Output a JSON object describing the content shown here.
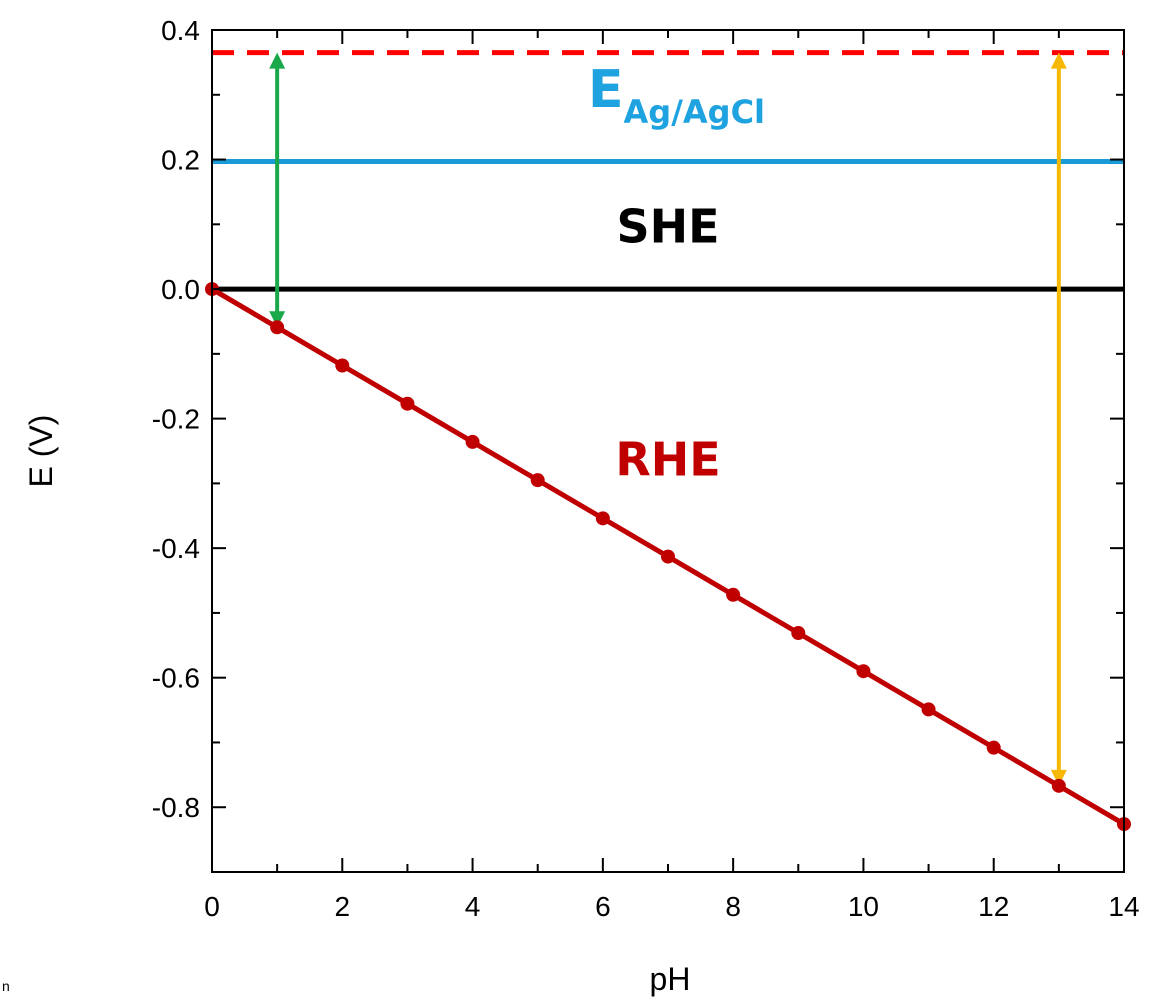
{
  "chart_data": {
    "type": "line",
    "xlabel": "pH",
    "ylabel": "E (V)",
    "xlim": [
      0,
      14
    ],
    "ylim": [
      -0.9,
      0.4
    ],
    "x_ticks": [
      0,
      2,
      4,
      6,
      8,
      10,
      12,
      14
    ],
    "x_tick_labels": [
      "0",
      "2",
      "4",
      "6",
      "8",
      "10",
      "12",
      "14"
    ],
    "y_ticks": [
      0.4,
      0.2,
      0.0,
      -0.2,
      -0.4,
      -0.6,
      -0.8
    ],
    "y_tick_labels": [
      "0.4",
      "0.2",
      "0.0",
      "-0.2",
      "-0.4",
      "-0.6",
      "-0.8"
    ],
    "grid": false,
    "series": [
      {
        "name": "RHE",
        "color": "#c00000",
        "style": "solid-with-markers",
        "x": [
          0,
          1,
          2,
          3,
          4,
          5,
          6,
          7,
          8,
          9,
          10,
          11,
          12,
          13,
          14
        ],
        "y": [
          0.0,
          -0.059,
          -0.118,
          -0.177,
          -0.236,
          -0.295,
          -0.354,
          -0.413,
          -0.472,
          -0.531,
          -0.59,
          -0.649,
          -0.708,
          -0.767,
          -0.826
        ]
      },
      {
        "name": "SHE",
        "color": "#000000",
        "style": "solid",
        "y": 0.0
      },
      {
        "name": "Ag/AgCl",
        "color": "#1a9ad6",
        "style": "solid",
        "y": 0.197
      },
      {
        "name": "",
        "color": "#ff0000",
        "style": "dashed",
        "y": 0.365
      }
    ],
    "annotations": {
      "she": {
        "text": "SHE",
        "color": "#000000",
        "x": 7,
        "y": 0.1
      },
      "rhe": {
        "text": "RHE",
        "color": "#c00000",
        "x": 7,
        "y": -0.26
      },
      "ag": {
        "base": "E",
        "sub": "Ag/AgCl",
        "color": "#1fa2e0",
        "x": 7,
        "y": 0.29
      }
    },
    "arrows": [
      {
        "x": 1,
        "y_from": 0.365,
        "y_to": -0.059,
        "color": "#1aa84b",
        "heads": "both"
      },
      {
        "x": 13,
        "y_from": 0.365,
        "y_to": -0.767,
        "color": "#f6b800",
        "heads": "both"
      }
    ]
  },
  "stray_char": "n"
}
